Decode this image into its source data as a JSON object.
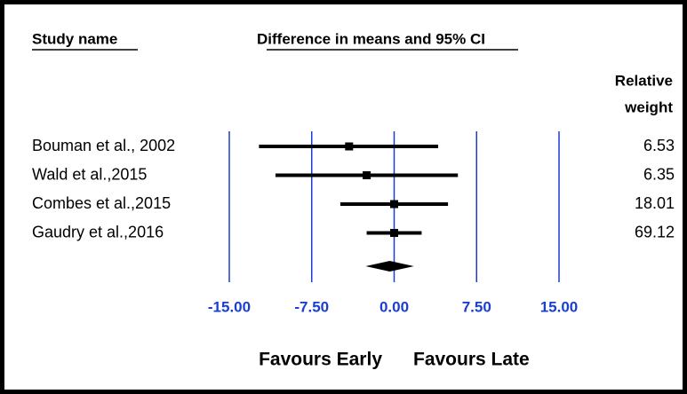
{
  "chart_data": {
    "type": "forest",
    "study_header": "Study name",
    "effect_header": "Difference in means and 95% CI",
    "weight_header": [
      "Relative",
      "weight"
    ],
    "categories": [
      "Bouman et al., 2002",
      "Wald et al.,2015",
      "Combes et al.,2015",
      "Gaudry et al.,2016"
    ],
    "values": [
      -4.1,
      -2.5,
      0.0,
      0.0
    ],
    "lower": [
      -12.3,
      -10.8,
      -4.9,
      -2.5
    ],
    "upper": [
      4.0,
      5.8,
      4.9,
      2.5
    ],
    "weights": [
      6.53,
      6.35,
      18.01,
      69.12
    ],
    "summary": {
      "value": -0.4,
      "lower": -2.6,
      "upper": 1.8
    },
    "xlim": [
      -15,
      15
    ],
    "xticks": [
      {
        "value": -15,
        "label": "-15.00"
      },
      {
        "value": -7.5,
        "label": "-7.50"
      },
      {
        "value": 0,
        "label": "0.00"
      },
      {
        "value": 7.5,
        "label": "7.50"
      },
      {
        "value": 15,
        "label": "15.00"
      }
    ],
    "left_label": "Favours Early",
    "right_label": "Favours Late",
    "color": "#000000",
    "tick_color": "#1a3fd0"
  }
}
